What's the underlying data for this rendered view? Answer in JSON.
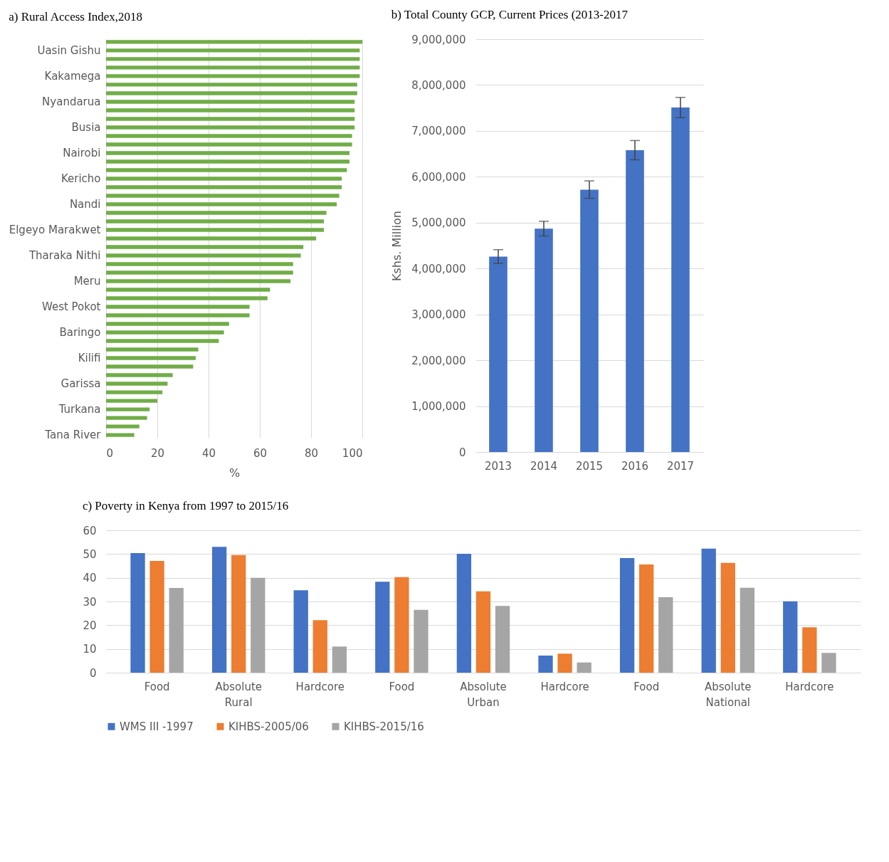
{
  "chart_data": [
    {
      "type": "bar",
      "orientation": "horizontal",
      "title": "a) Rural Access Index,2018",
      "xlabel": "%",
      "categories": [
        null,
        "Uasin Gishu",
        null,
        null,
        "Kakamega",
        null,
        null,
        "Nyandarua",
        null,
        null,
        "Busia",
        null,
        null,
        "Nairobi",
        null,
        null,
        "Kericho",
        null,
        null,
        "Nandi",
        null,
        null,
        "Elgeyo Marakwet",
        null,
        null,
        "Tharaka Nithi",
        null,
        null,
        "Meru",
        null,
        null,
        "West Pokot",
        null,
        null,
        "Baringo",
        null,
        null,
        "Kilifi",
        null,
        null,
        "Garissa",
        null,
        null,
        "Turkana",
        null,
        null,
        "Tana River"
      ],
      "values": [
        100,
        99,
        99,
        99,
        99,
        98,
        98,
        97,
        97,
        97,
        97,
        96,
        96,
        95,
        95,
        94,
        92,
        92,
        91,
        90,
        86,
        85,
        85,
        82,
        77,
        76,
        73,
        73,
        72,
        64,
        63,
        56,
        56,
        48,
        46,
        44,
        36,
        35,
        34,
        26,
        24,
        22,
        20,
        17,
        16,
        13,
        11
      ],
      "color": "#70ad47",
      "xlim": [
        0,
        100
      ],
      "xticks": [
        0,
        20,
        40,
        60,
        80,
        100
      ],
      "grid": "x"
    },
    {
      "type": "bar",
      "title": "b)  Total County GCP, Current Prices (2013-2017",
      "ylabel": "Kshs. Million",
      "categories": [
        "2013",
        "2014",
        "2015",
        "2016",
        "2017"
      ],
      "values": [
        4260000,
        4870000,
        5720000,
        6580000,
        7510000
      ],
      "errors": [
        150000,
        160000,
        190000,
        210000,
        220000
      ],
      "color": "#4472c4",
      "ylim": [
        0,
        9000000
      ],
      "yticks": [
        0,
        {
          "value": 1000000,
          "label": "1,000,000"
        },
        {
          "value": 2000000,
          "label": "2,000,000"
        },
        {
          "value": 3000000,
          "label": "3,000,000"
        },
        {
          "value": 4000000,
          "label": "4,000,000"
        },
        {
          "value": 5000000,
          "label": "5,000,000"
        },
        {
          "value": 6000000,
          "label": "6,000,000"
        },
        {
          "value": 7000000,
          "label": "7,000,000"
        },
        {
          "value": 8000000,
          "label": "8,000,000"
        },
        {
          "value": 9000000,
          "label": "9,000,000"
        }
      ],
      "grid": "y"
    },
    {
      "type": "bar",
      "title": "c) Poverty in Kenya from 1997 to 2015/16",
      "categories": [
        "Food",
        "Absolute",
        "Hardcore",
        "Food",
        "Absolute",
        "Hardcore",
        "Food",
        "Absolute",
        "Hardcore"
      ],
      "annotations": [
        "Rural",
        "Urban",
        "National"
      ],
      "series": [
        {
          "name": "WMS III -1997",
          "color": "#4472c4",
          "values": [
            50.4,
            53.0,
            34.7,
            38.3,
            50.1,
            7.2,
            48.3,
            52.3,
            30.1
          ]
        },
        {
          "name": "KIHBS-2005/06",
          "color": "#ed7d31",
          "values": [
            47.1,
            49.6,
            22.1,
            40.3,
            34.3,
            8.0,
            45.6,
            46.3,
            19.1
          ]
        },
        {
          "name": "KIHBS-2015/16",
          "color": "#a5a5a5",
          "values": [
            35.7,
            40.0,
            11.0,
            26.5,
            28.1,
            4.3,
            31.8,
            35.8,
            8.3
          ]
        }
      ],
      "ylim": [
        0,
        60
      ],
      "yticks": [
        0,
        10,
        20,
        30,
        40,
        50,
        60
      ],
      "grid": "y",
      "legend": "bottom"
    }
  ]
}
